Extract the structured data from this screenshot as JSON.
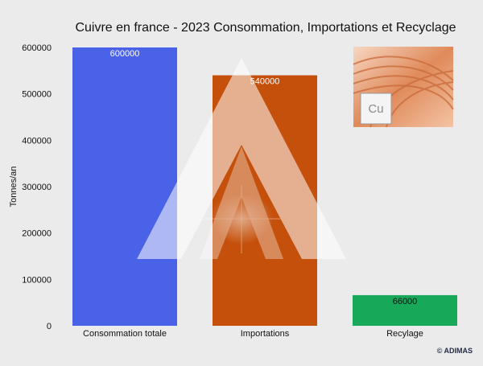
{
  "chart_data": {
    "type": "bar",
    "title": "Cuivre en france - 2023 Consommation, Importations et Recyclage",
    "ylabel": "Tonnes/an",
    "xlabel": "",
    "categories": [
      "Consommation totale",
      "Importations",
      "Recylage"
    ],
    "values": [
      600000,
      540000,
      66000
    ],
    "data_labels": [
      "600000",
      "540000",
      "66000"
    ],
    "bar_colors": [
      "#4a62e8",
      "#c4500b",
      "#18a85a"
    ],
    "label_colors": [
      "#ffffff",
      "#ffffff",
      "#111111"
    ],
    "ylim": [
      0,
      600000
    ],
    "yticks": [
      "0",
      "100000",
      "200000",
      "300000",
      "400000",
      "500000",
      "600000"
    ],
    "ytick_values": [
      0,
      100000,
      200000,
      300000,
      400000,
      500000,
      600000
    ],
    "grid": false,
    "legend": "none"
  },
  "inset_image": {
    "symbol": "Cu"
  },
  "credit": "© ADIMAS",
  "colors": {
    "background": "#ebebeb",
    "watermark": "#ffffff"
  }
}
